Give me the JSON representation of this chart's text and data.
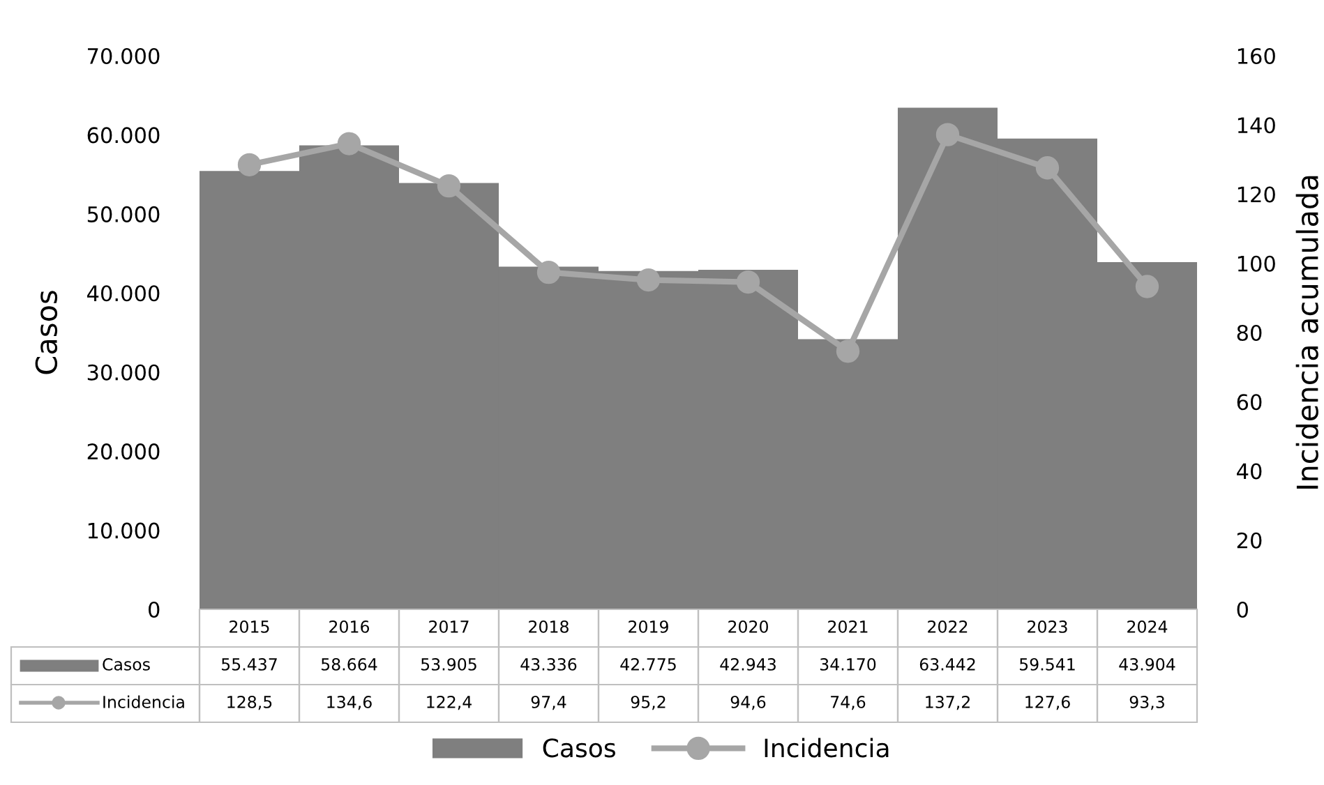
{
  "chart_data": {
    "type": "bar",
    "ylabel": "Casos",
    "y2label": "Incidencia acumulada",
    "categories": [
      "2015",
      "2016",
      "2017",
      "2018",
      "2019",
      "2020",
      "2021",
      "2022",
      "2023",
      "2024"
    ],
    "series": [
      {
        "name": "Casos",
        "color": "#7f7f7f",
        "values": [
          55437,
          58664,
          53905,
          43336,
          42775,
          42943,
          34170,
          63442,
          59541,
          43904
        ],
        "value_labels": [
          "55.437",
          "58.664",
          "53.905",
          "43.336",
          "42.775",
          "42.943",
          "34.170",
          "63.442",
          "59.541",
          "43.904"
        ]
      },
      {
        "name": "Incidencia",
        "type": "line",
        "axis": "y2",
        "color": "#a6a6a6",
        "values": [
          128.5,
          134.6,
          122.4,
          97.4,
          95.2,
          94.6,
          74.6,
          137.2,
          127.6,
          93.3
        ],
        "value_labels": [
          "128,5",
          "134,6",
          "122,4",
          "97,4",
          "95,2",
          "94,6",
          "74,6",
          "137,2",
          "127,6",
          "93,3"
        ]
      }
    ],
    "ylim": [
      0,
      70000
    ],
    "yticks": [
      0,
      {
        "value": 10000,
        "label": "10.000"
      },
      {
        "value": 20000,
        "label": "20.000"
      },
      {
        "value": 30000,
        "label": "30.000"
      },
      {
        "value": 40000,
        "label": "40.000"
      },
      {
        "value": 50000,
        "label": "50.000"
      },
      {
        "value": 60000,
        "label": "60.000"
      },
      {
        "value": 70000,
        "label": "70.000"
      }
    ],
    "y2lim": [
      0,
      160
    ],
    "y2ticks": [
      0,
      20,
      40,
      60,
      80,
      100,
      120,
      140,
      160
    ],
    "marker": "circle",
    "line_style": "solid",
    "grid": false,
    "legend": "bottom"
  }
}
